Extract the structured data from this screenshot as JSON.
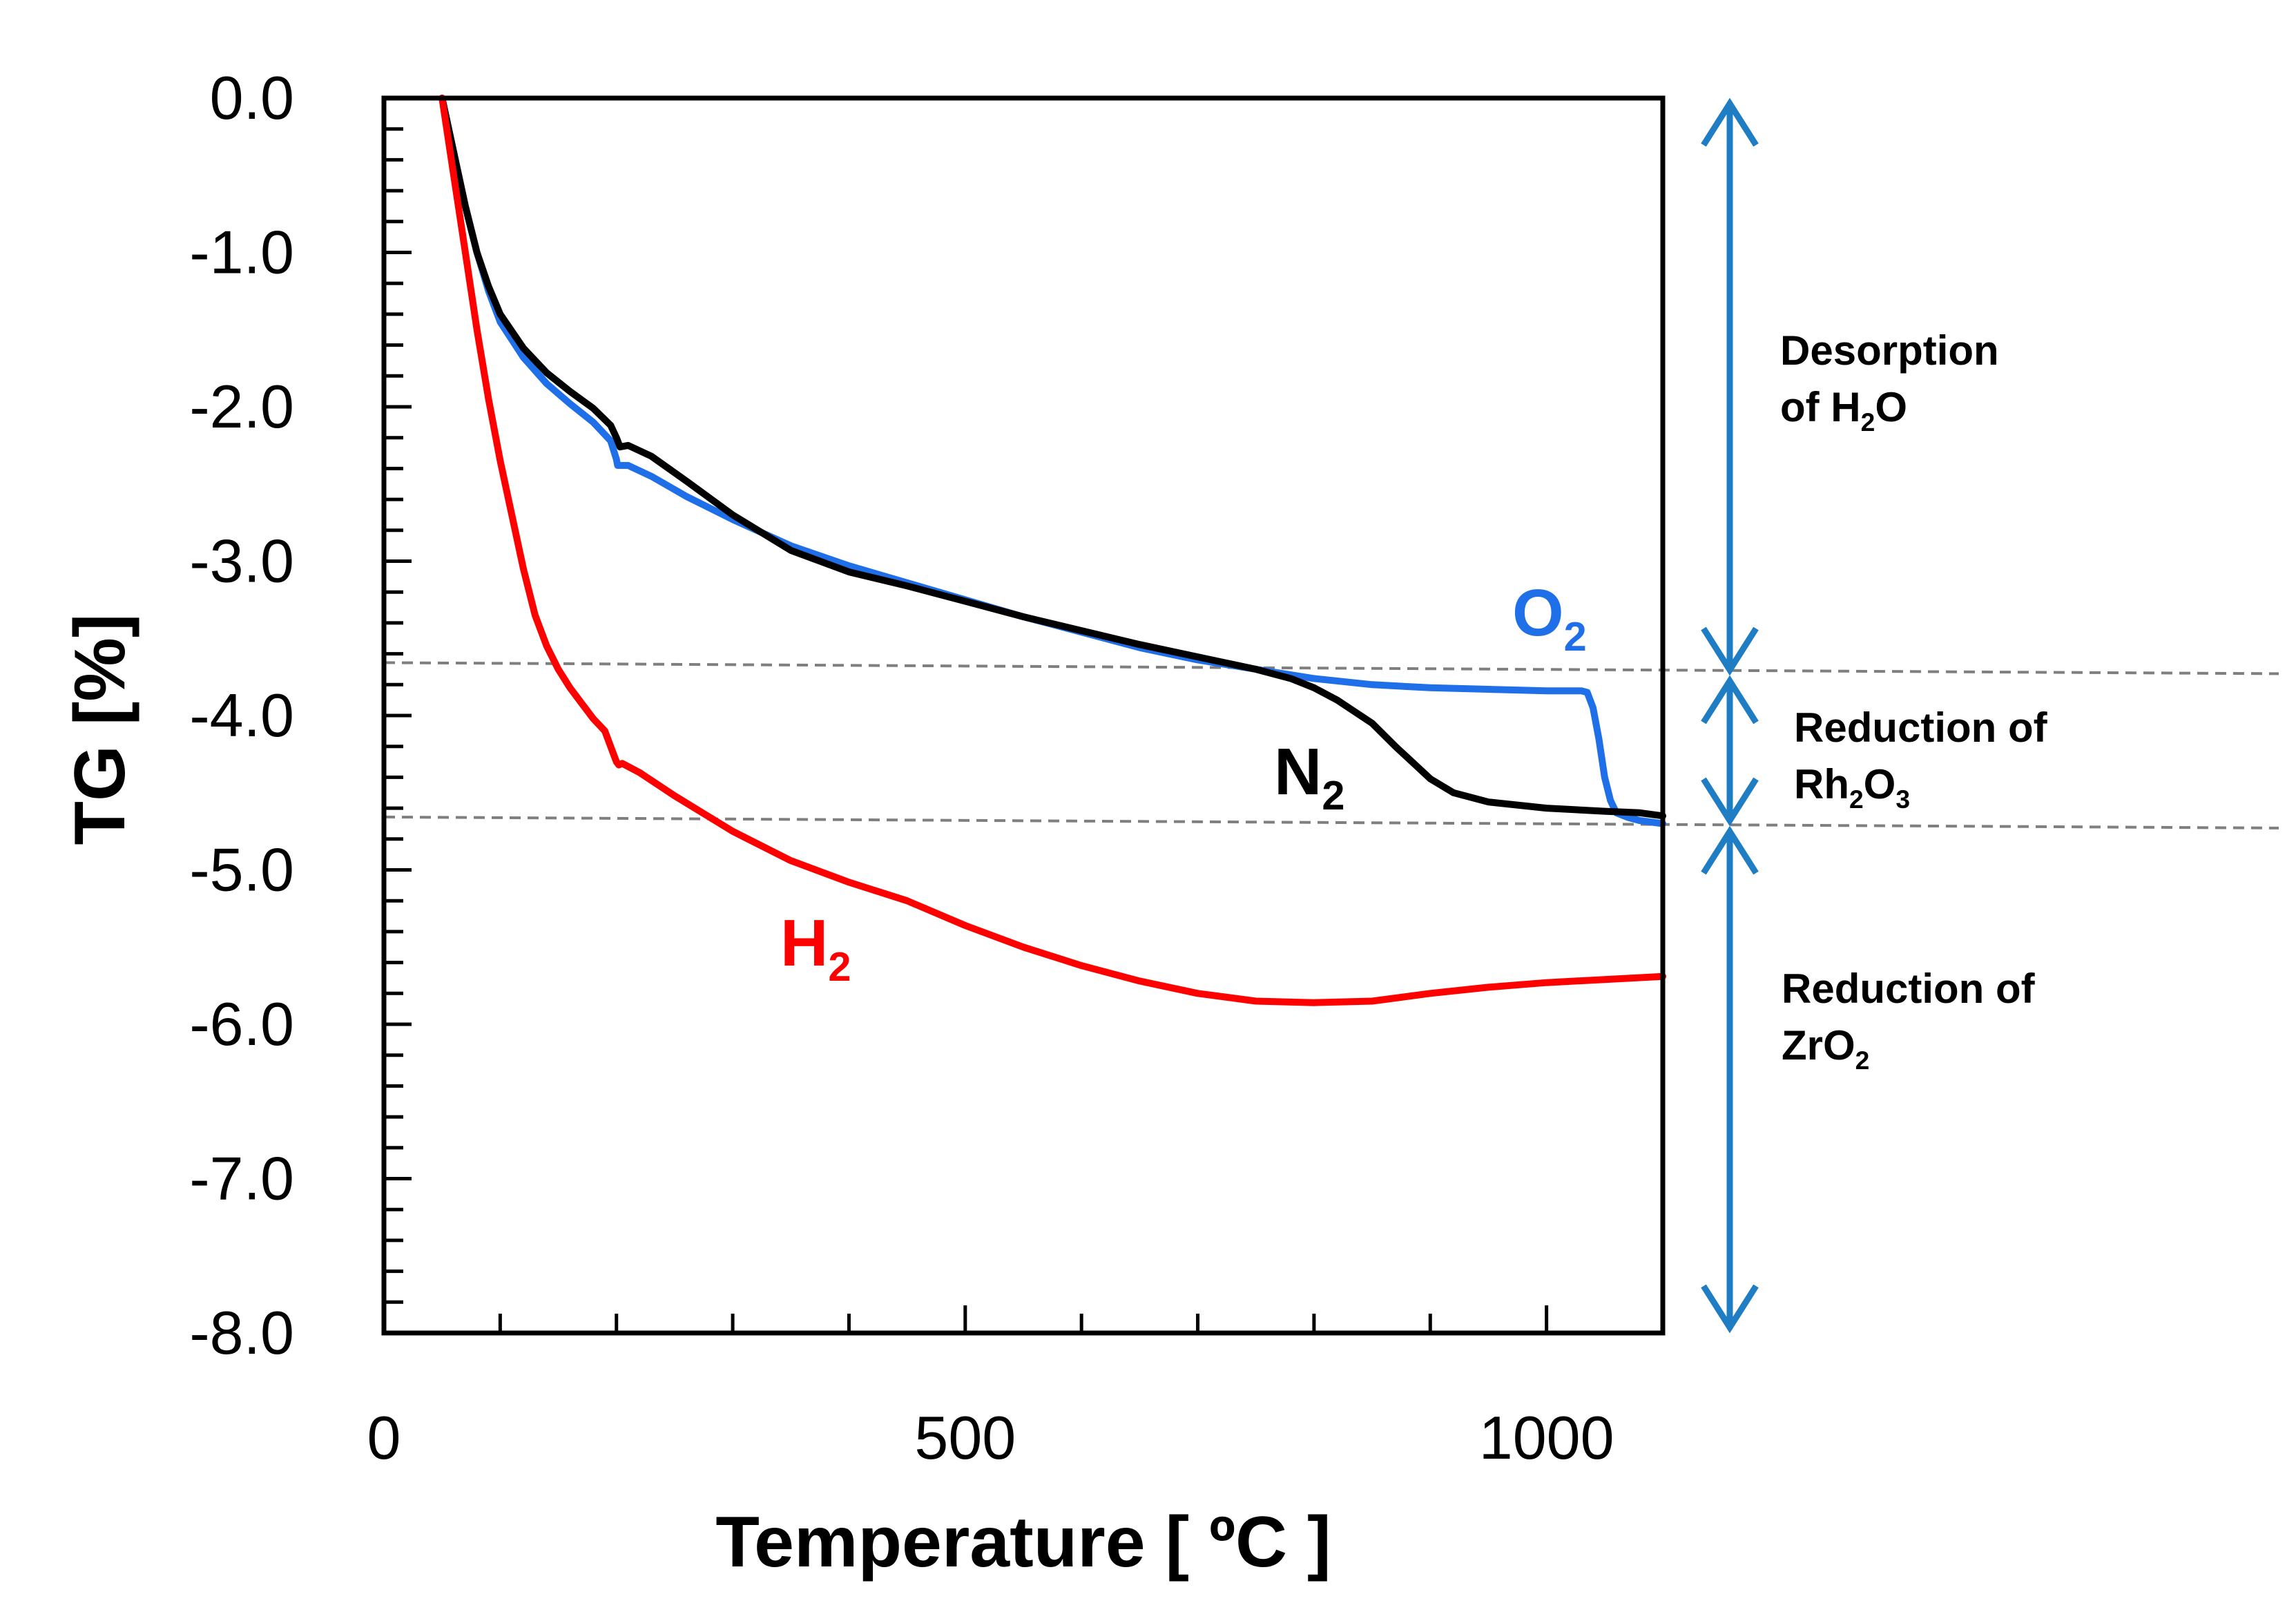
{
  "chart_data": {
    "type": "line",
    "title": "",
    "xlabel": "Temperature [ ºC ]",
    "ylabel": "TG  [%]",
    "xlim": [
      0,
      1100
    ],
    "ylim": [
      -8.0,
      0.0
    ],
    "x_ticks": [
      0,
      500,
      1000
    ],
    "x_tick_labels": [
      "0",
      "500",
      "1000"
    ],
    "y_ticks": [
      0.0,
      -1.0,
      -2.0,
      -3.0,
      -4.0,
      -5.0,
      -6.0,
      -7.0,
      -8.0
    ],
    "y_tick_labels": [
      "0.0",
      "-1.0",
      "-2.0",
      "-3.0",
      "-4.0",
      "-5.0",
      "-6.0",
      "-7.0",
      "-8.0"
    ],
    "grid": false,
    "series": [
      {
        "name": "O2",
        "label_main": "O",
        "label_sub": "2",
        "color": "#1f6fe8",
        "x": [
          50,
          60,
          70,
          80,
          90,
          100,
          120,
          140,
          160,
          180,
          195,
          200,
          201,
          210,
          230,
          260,
          300,
          350,
          400,
          450,
          500,
          550,
          600,
          650,
          700,
          750,
          800,
          850,
          900,
          950,
          1000,
          1030,
          1035,
          1040,
          1045,
          1050,
          1055,
          1060,
          1070,
          1080,
          1100
        ],
        "y": [
          0.0,
          -0.35,
          -0.7,
          -1.0,
          -1.25,
          -1.45,
          -1.68,
          -1.85,
          -1.98,
          -2.1,
          -2.22,
          -2.34,
          -2.38,
          -2.38,
          -2.45,
          -2.58,
          -2.73,
          -2.9,
          -3.03,
          -3.14,
          -3.25,
          -3.36,
          -3.46,
          -3.56,
          -3.64,
          -3.7,
          -3.76,
          -3.8,
          -3.82,
          -3.83,
          -3.84,
          -3.84,
          -3.85,
          -3.95,
          -4.15,
          -4.4,
          -4.55,
          -4.63,
          -4.66,
          -4.68,
          -4.7
        ]
      },
      {
        "name": "N2",
        "label_main": "N",
        "label_sub": "2",
        "color": "#000000",
        "x": [
          50,
          60,
          70,
          80,
          90,
          100,
          120,
          140,
          160,
          180,
          195,
          200,
          203,
          210,
          230,
          260,
          300,
          350,
          400,
          450,
          500,
          550,
          600,
          650,
          700,
          750,
          780,
          800,
          820,
          850,
          870,
          900,
          920,
          950,
          1000,
          1050,
          1080,
          1100
        ],
        "y": [
          0.0,
          -0.35,
          -0.7,
          -1.0,
          -1.22,
          -1.4,
          -1.62,
          -1.78,
          -1.9,
          -2.01,
          -2.12,
          -2.2,
          -2.26,
          -2.25,
          -2.32,
          -2.48,
          -2.7,
          -2.93,
          -3.07,
          -3.16,
          -3.26,
          -3.36,
          -3.45,
          -3.54,
          -3.62,
          -3.7,
          -3.76,
          -3.82,
          -3.9,
          -4.05,
          -4.2,
          -4.41,
          -4.5,
          -4.56,
          -4.6,
          -4.62,
          -4.63,
          -4.65
        ]
      },
      {
        "name": "H2",
        "label_main": "H",
        "label_sub": "2",
        "color": "#ff0000",
        "x": [
          50,
          60,
          70,
          80,
          90,
          100,
          110,
          120,
          130,
          140,
          150,
          160,
          170,
          180,
          190,
          195,
          200,
          202,
          205,
          220,
          250,
          300,
          350,
          400,
          450,
          500,
          550,
          600,
          650,
          700,
          750,
          800,
          850,
          900,
          950,
          1000,
          1050,
          1100
        ],
        "y": [
          0.0,
          -0.5,
          -1.0,
          -1.5,
          -1.95,
          -2.35,
          -2.7,
          -3.05,
          -3.35,
          -3.55,
          -3.7,
          -3.82,
          -3.92,
          -4.02,
          -4.1,
          -4.2,
          -4.3,
          -4.32,
          -4.31,
          -4.37,
          -4.52,
          -4.75,
          -4.94,
          -5.08,
          -5.2,
          -5.36,
          -5.5,
          -5.62,
          -5.72,
          -5.8,
          -5.85,
          -5.86,
          -5.85,
          -5.8,
          -5.76,
          -5.73,
          -5.71,
          -5.69
        ]
      }
    ],
    "reference_lines": [
      {
        "y": -3.72,
        "style": "dashed",
        "color": "#7f7f7f"
      },
      {
        "y": -4.72,
        "style": "dashed",
        "color": "#7f7f7f"
      }
    ],
    "range_annotations": [
      {
        "from": 0.0,
        "to": -3.72,
        "lines": [
          {
            "parts": [
              {
                "t": "Desorption"
              }
            ]
          },
          {
            "parts": [
              {
                "t": "of H"
              },
              {
                "t": "2",
                "sub": true
              },
              {
                "t": "O"
              }
            ]
          }
        ]
      },
      {
        "from": -3.72,
        "to": -4.72,
        "lines": [
          {
            "parts": [
              {
                "t": "Reduction of"
              }
            ]
          },
          {
            "parts": [
              {
                "t": "Rh"
              },
              {
                "t": "2",
                "sub": true
              },
              {
                "t": "O"
              },
              {
                "t": "3",
                "sub": true
              }
            ]
          }
        ]
      },
      {
        "from": -4.72,
        "to": -8.0,
        "lines": [
          {
            "parts": [
              {
                "t": "Reduction of"
              }
            ]
          },
          {
            "parts": [
              {
                "t": "ZrO"
              },
              {
                "t": "2",
                "sub": true
              }
            ]
          }
        ]
      }
    ],
    "arrow_color": "#1f7dc4"
  }
}
